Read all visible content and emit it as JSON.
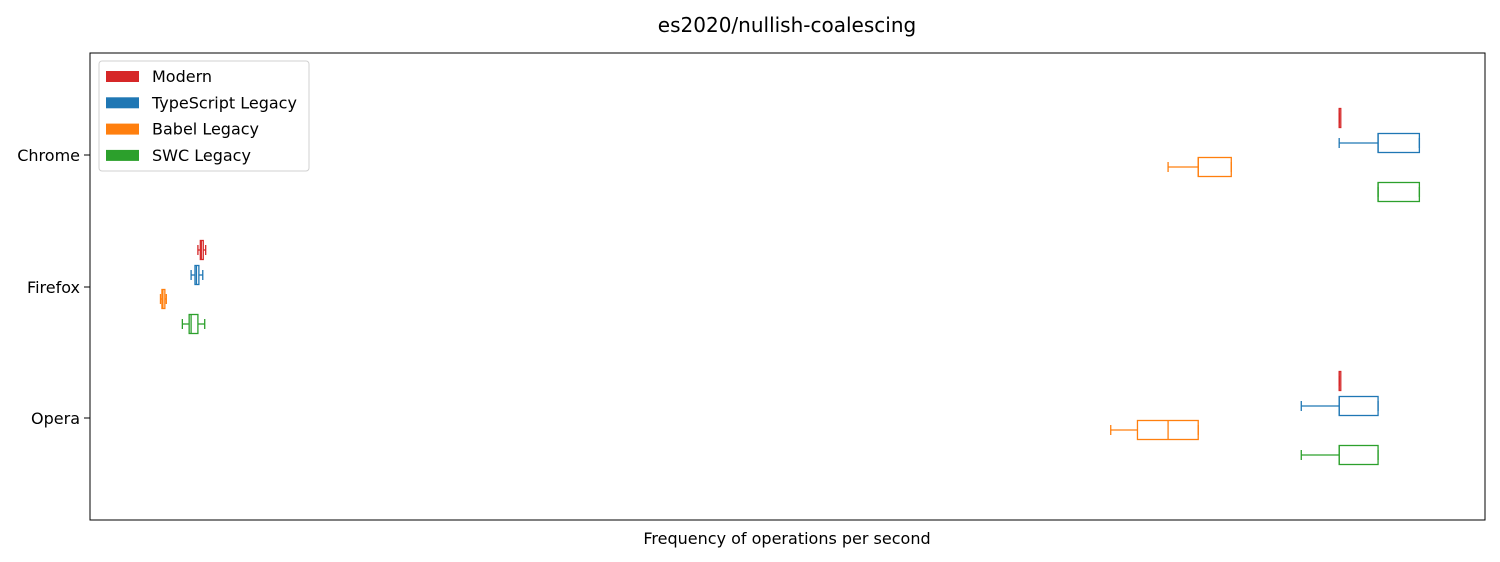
{
  "chart_data": {
    "type": "boxplot",
    "orientation": "horizontal",
    "title": "es2020/nullish-coalescing",
    "xlabel": "Frequency of operations per second",
    "ylabel": "",
    "x_ticks_shown": false,
    "xlim": [
      -150,
      2720
    ],
    "categories": [
      "Chrome",
      "Firefox",
      "Opera"
    ],
    "legend": {
      "placement": "upper left"
    },
    "series": [
      {
        "name": "Modern",
        "color": "#d62728",
        "boxes": [
          {
            "category": "Chrome",
            "whisker_low": 2420,
            "q1": 2420,
            "median": 2420,
            "q3": 2420,
            "whisker_high": 2420
          },
          {
            "category": "Firefox",
            "whisker_low": 72,
            "q1": 77,
            "median": 79,
            "q3": 83,
            "whisker_high": 88
          },
          {
            "category": "Opera",
            "whisker_low": 2420,
            "q1": 2420,
            "median": 2420,
            "q3": 2420,
            "whisker_high": 2420
          }
        ]
      },
      {
        "name": "TypeScript Legacy",
        "color": "#1f77b4",
        "boxes": [
          {
            "category": "Chrome",
            "whisker_low": 2420,
            "q1": 2500,
            "median": 2500,
            "q3": 2585,
            "whisker_high": 2585
          },
          {
            "category": "Firefox",
            "whisker_low": 58,
            "q1": 66,
            "median": 69,
            "q3": 74,
            "whisker_high": 82
          },
          {
            "category": "Opera",
            "whisker_low": 2342,
            "q1": 2420,
            "median": 2420,
            "q3": 2500,
            "whisker_high": 2500
          }
        ]
      },
      {
        "name": "Babel Legacy",
        "color": "#ff7f0e",
        "boxes": [
          {
            "category": "Chrome",
            "whisker_low": 2068,
            "q1": 2130,
            "median": 2130,
            "q3": 2198,
            "whisker_high": 2198
          },
          {
            "category": "Firefox",
            "whisker_low": -5,
            "q1": -2,
            "median": 0,
            "q3": 4,
            "whisker_high": 7
          },
          {
            "category": "Opera",
            "whisker_low": 1950,
            "q1": 2005,
            "median": 2068,
            "q3": 2130,
            "whisker_high": 2130
          }
        ]
      },
      {
        "name": "SWC Legacy",
        "color": "#2ca02c",
        "boxes": [
          {
            "category": "Chrome",
            "whisker_low": 2500,
            "q1": 2500,
            "median": 2500,
            "q3": 2585,
            "whisker_high": 2585
          },
          {
            "category": "Firefox",
            "whisker_low": 40,
            "q1": 54,
            "median": 58,
            "q3": 72,
            "whisker_high": 86
          },
          {
            "category": "Opera",
            "whisker_low": 2342,
            "q1": 2420,
            "median": 2420,
            "q3": 2500,
            "whisker_high": 2500
          }
        ]
      }
    ]
  }
}
